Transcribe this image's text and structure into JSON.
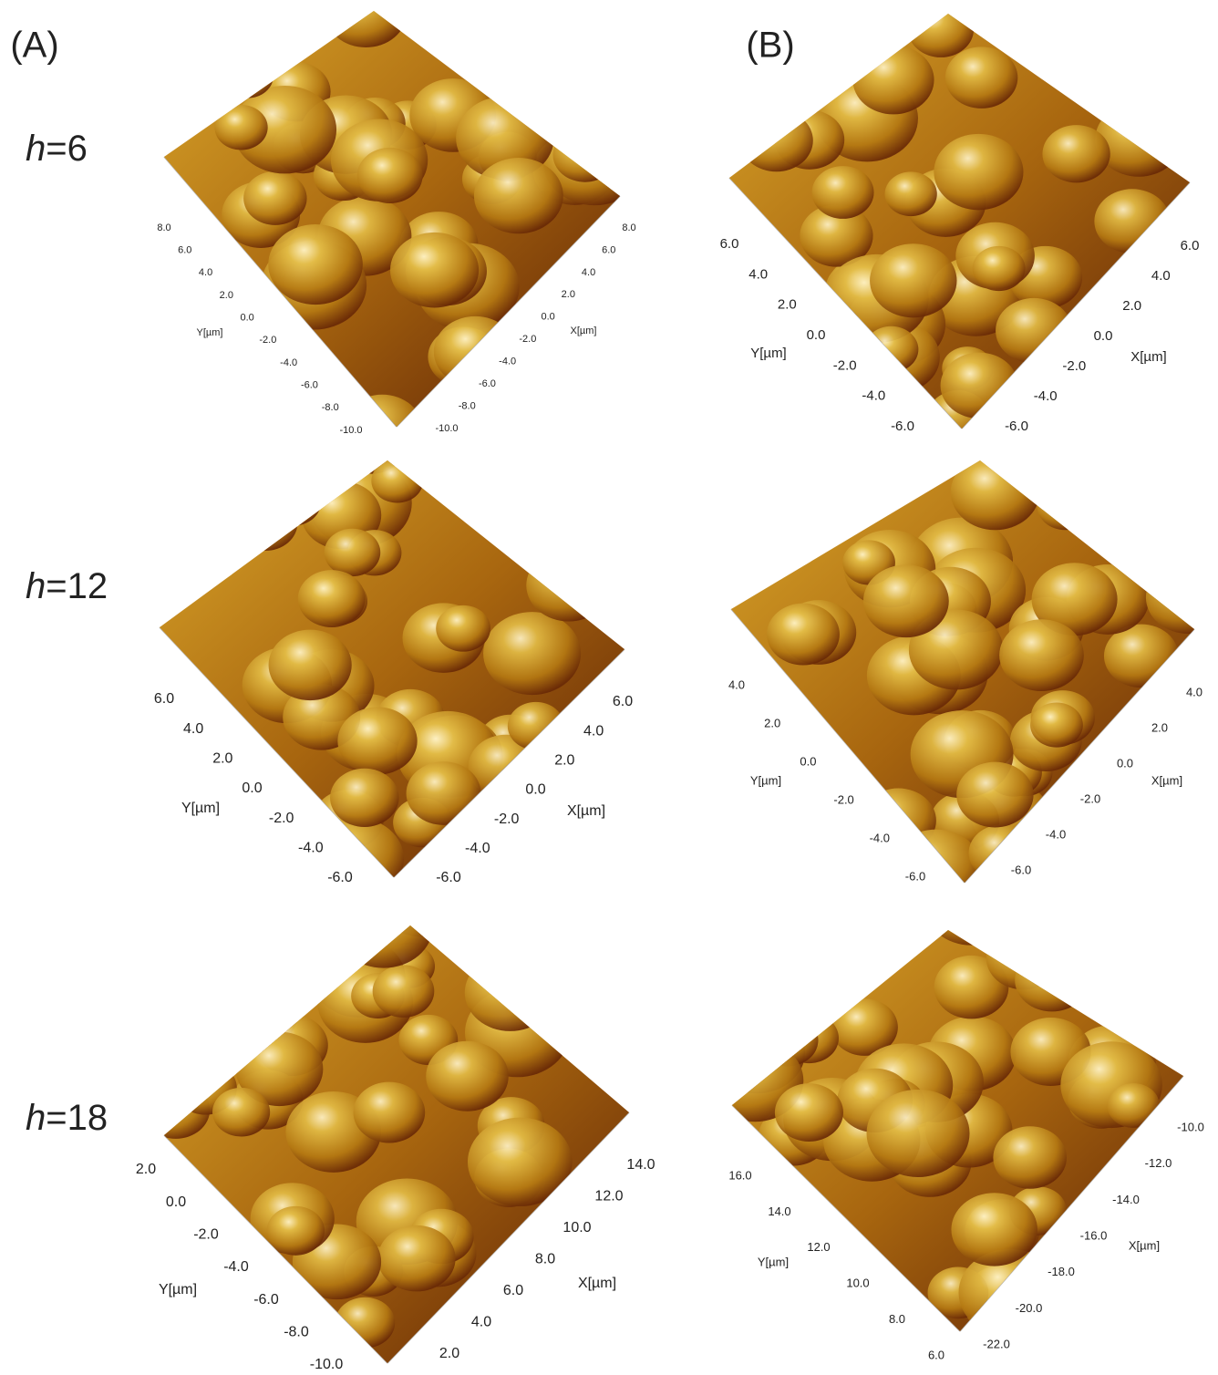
{
  "panel_labels": [
    "(A)",
    "(B)"
  ],
  "rows": [
    {
      "var": "h",
      "eq": "=6"
    },
    {
      "var": "h",
      "eq": "=12"
    },
    {
      "var": "h",
      "eq": "=18"
    }
  ],
  "panels": [
    {
      "y_ticks": [
        "8.0",
        "6.0",
        "4.0",
        "2.0",
        "0.0",
        "-2.0",
        "-4.0",
        "-6.0",
        "-8.0",
        "-10.0"
      ],
      "x_ticks": [
        "-10.0",
        "-8.0",
        "-6.0",
        "-4.0",
        "-2.0",
        "0.0",
        "2.0",
        "4.0",
        "6.0",
        "8.0"
      ],
      "y_label": "Y[µm]",
      "x_label": "X[µm]"
    },
    {
      "y_ticks": [
        "6.0",
        "4.0",
        "2.0",
        "0.0",
        "-2.0",
        "-4.0",
        "-6.0"
      ],
      "x_ticks": [
        "-6.0",
        "-4.0",
        "-2.0",
        "0.0",
        "2.0",
        "4.0",
        "6.0"
      ],
      "y_label": "Y[µm]",
      "x_label": "X[µm]"
    },
    {
      "y_ticks": [
        "6.0",
        "4.0",
        "2.0",
        "0.0",
        "-2.0",
        "-4.0",
        "-6.0"
      ],
      "x_ticks": [
        "-6.0",
        "-4.0",
        "-2.0",
        "0.0",
        "2.0",
        "4.0",
        "6.0"
      ],
      "y_label": "Y[µm]",
      "x_label": "X[µm]"
    },
    {
      "y_ticks": [
        "4.0",
        "2.0",
        "0.0",
        "-2.0",
        "-4.0",
        "-6.0"
      ],
      "x_ticks": [
        "-6.0",
        "-4.0",
        "-2.0",
        "0.0",
        "2.0",
        "4.0"
      ],
      "y_label": "Y[µm]",
      "x_label": "X[µm]"
    },
    {
      "y_ticks": [
        "2.0",
        "0.0",
        "-2.0",
        "-4.0",
        "-6.0",
        "-8.0",
        "-10.0"
      ],
      "x_ticks": [
        "2.0",
        "4.0",
        "6.0",
        "8.0",
        "10.0",
        "12.0",
        "14.0"
      ],
      "y_label": "Y[µm]",
      "x_label": "X[µm]"
    },
    {
      "y_ticks": [
        "16.0",
        "14.0",
        "12.0",
        "10.0",
        "8.0",
        "6.0"
      ],
      "x_ticks": [
        "-22.0",
        "-20.0",
        "-18.0",
        "-16.0",
        "-14.0",
        "-12.0",
        "-10.0"
      ],
      "y_label": "Y[µm]",
      "x_label": "X[µm]"
    }
  ]
}
